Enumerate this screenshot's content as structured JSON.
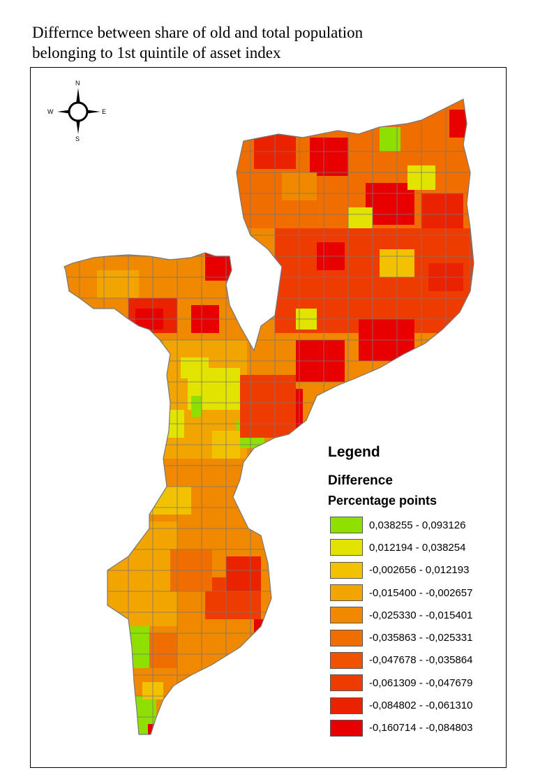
{
  "title": {
    "line1": "Differnce between share of old and total population",
    "line2": "belonging to 1st quintile of asset index"
  },
  "compass": {
    "n": "N",
    "s": "S",
    "e": "E",
    "w": "W"
  },
  "legend": {
    "title": "Legend",
    "subtitle": "Difference",
    "unit": "Percentage points",
    "classes": [
      {
        "label": "0,038255 - 0,093126",
        "color": "#8fe000"
      },
      {
        "label": "0,012194 - 0,038254",
        "color": "#e3e300"
      },
      {
        "label": "-0,002656 - 0,012193",
        "color": "#f2c200"
      },
      {
        "label": "-0,015400 - -0,002657",
        "color": "#f2a400"
      },
      {
        "label": "-0,025330 - -0,015401",
        "color": "#f08800"
      },
      {
        "label": "-0,035863 - -0,025331",
        "color": "#f06e00"
      },
      {
        "label": "-0,047678 - -0,035864",
        "color": "#f05300"
      },
      {
        "label": "-0,061309 - -0,047679",
        "color": "#ee3c00"
      },
      {
        "label": "-0,084802 - -0,061310",
        "color": "#eb2200"
      },
      {
        "label": "-0,160714 - -0,084803",
        "color": "#e80000"
      }
    ]
  },
  "map": {
    "border_color": "#777777",
    "north_color": "#f05300",
    "west_color": "#f08800",
    "central_color": "#f2a400",
    "south_color": "#f08800"
  }
}
